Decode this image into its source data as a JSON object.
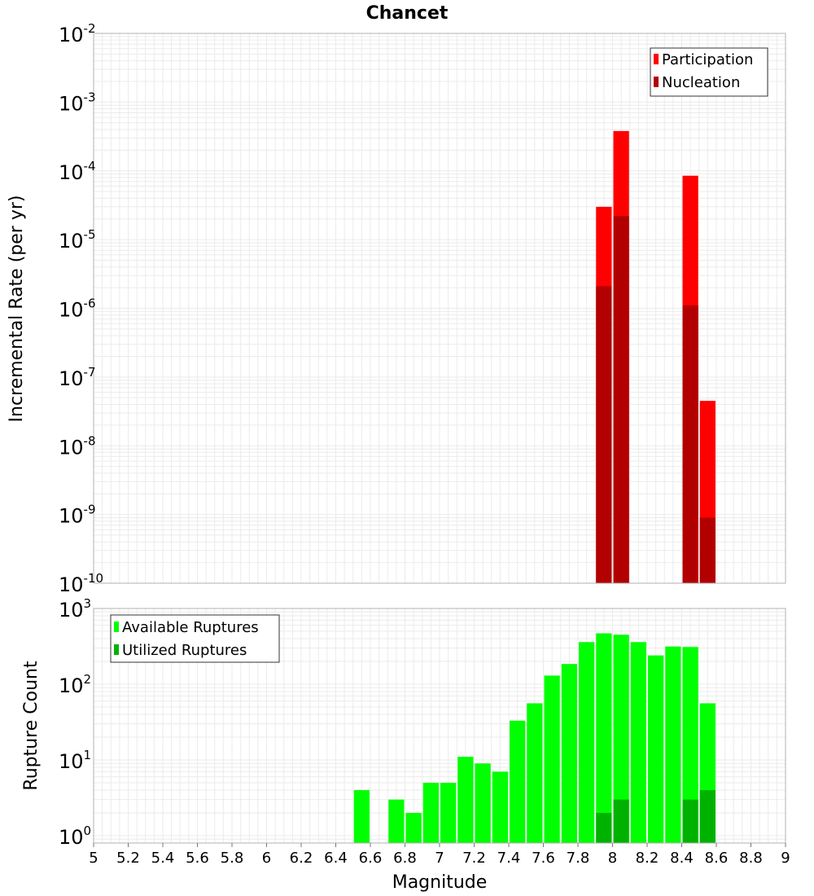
{
  "chart_data": [
    {
      "type": "bar",
      "title": "Chancet",
      "xlabel": "",
      "ylabel": "Incremental Rate (per yr)",
      "xlim": [
        5,
        9
      ],
      "ylim": [
        1e-10,
        0.01
      ],
      "yscale": "log",
      "grid": true,
      "legend_position": "top-right",
      "bin_width": 0.1,
      "series": [
        {
          "name": "Participation",
          "color": "#ff0000",
          "x": [
            7.95,
            8.05,
            8.45,
            8.55
          ],
          "values": [
            3e-05,
            0.00038,
            8.5e-05,
            4.5e-08
          ]
        },
        {
          "name": "Nucleation",
          "color": "#b20000",
          "x": [
            7.95,
            8.05,
            8.45,
            8.55
          ],
          "values": [
            2.1e-06,
            2.2e-05,
            1.1e-06,
            9e-10
          ]
        }
      ]
    },
    {
      "type": "bar",
      "title": "",
      "xlabel": "Magnitude",
      "ylabel": "Rupture Count",
      "xlim": [
        5,
        9
      ],
      "ylim": [
        0.8,
        1000
      ],
      "yscale": "log",
      "grid": true,
      "legend_position": "top-left",
      "bin_width": 0.1,
      "series": [
        {
          "name": "Available Ruptures",
          "color": "#00ff00",
          "x": [
            6.55,
            6.75,
            6.85,
            6.95,
            7.05,
            7.15,
            7.25,
            7.35,
            7.45,
            7.55,
            7.65,
            7.75,
            7.85,
            7.95,
            8.05,
            8.15,
            8.25,
            8.35,
            8.45,
            8.55
          ],
          "values": [
            4,
            3,
            2,
            5,
            5,
            11,
            9,
            7,
            33,
            56,
            130,
            185,
            360,
            470,
            450,
            360,
            240,
            315,
            310,
            56
          ]
        },
        {
          "name": "Utilized Ruptures",
          "color": "#00b200",
          "x": [
            7.95,
            8.05,
            8.45,
            8.55
          ],
          "values": [
            2,
            3,
            3,
            4
          ]
        }
      ]
    }
  ],
  "x_ticks": [
    "5",
    "5.2",
    "5.4",
    "5.6",
    "5.8",
    "6",
    "6.2",
    "6.4",
    "6.6",
    "6.8",
    "7",
    "7.2",
    "7.4",
    "7.6",
    "7.8",
    "8",
    "8.2",
    "8.4",
    "8.6",
    "8.8",
    "9"
  ],
  "y_ticks_top": [
    {
      "base": "10",
      "exp": "-2"
    },
    {
      "base": "10",
      "exp": "-3"
    },
    {
      "base": "10",
      "exp": "-4"
    },
    {
      "base": "10",
      "exp": "-5"
    },
    {
      "base": "10",
      "exp": "-6"
    },
    {
      "base": "10",
      "exp": "-7"
    },
    {
      "base": "10",
      "exp": "-8"
    },
    {
      "base": "10",
      "exp": "-9"
    },
    {
      "base": "10",
      "exp": "-10"
    }
  ],
  "y_ticks_bottom": [
    {
      "base": "10",
      "exp": "3"
    },
    {
      "base": "10",
      "exp": "2"
    },
    {
      "base": "10",
      "exp": "1"
    },
    {
      "base": "10",
      "exp": "0"
    }
  ],
  "colors": {
    "grid": "#ebebeb",
    "frame": "#b0b0b0"
  }
}
